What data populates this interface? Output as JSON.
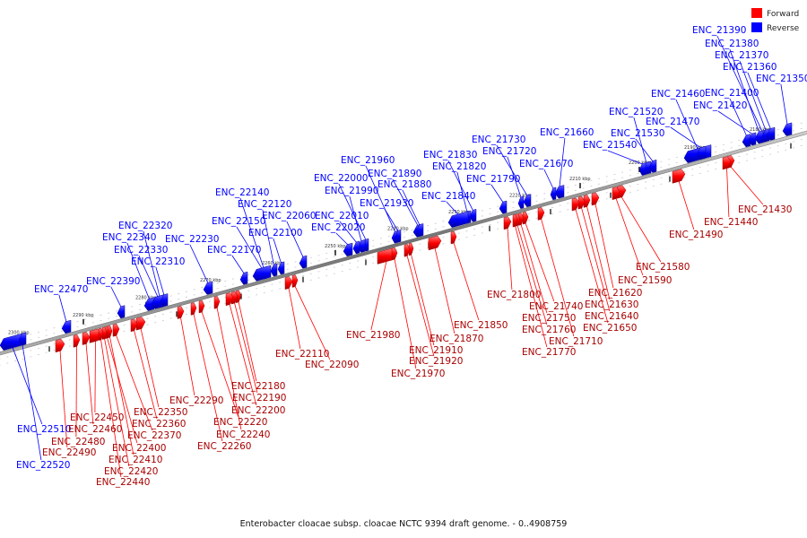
{
  "caption": "Enterobacter cloacae subsp. cloacae NCTC 9394 draft genome. - 0..4908759",
  "legend": {
    "forward_label": "Forward",
    "reverse_label": "Reverse",
    "forward_color": "#ff0000",
    "reverse_color": "#0000ff"
  },
  "colors": {
    "forward": "#ff0000",
    "forward_dark": "#a80000",
    "reverse": "#0000ff",
    "reverse_dark": "#0000a0",
    "backbone": "#808080"
  },
  "scale_ticks": [
    "2180 kbp",
    "2190 kbp",
    "2200 kbp",
    "2210 kbp",
    "2220 kbp",
    "2230 kbp",
    "2240 kbp",
    "2250 kbp",
    "2260 kbp",
    "2270 kbp",
    "2280 kbp",
    "2290 kbp",
    "2300 kbp"
  ],
  "reverse_genes": [
    "ENC_21390",
    "ENC_21380",
    "ENC_21370",
    "ENC_21360",
    "ENC_21350",
    "ENC_21460",
    "ENC_21400",
    "ENC_21520",
    "ENC_21420",
    "ENC_21470",
    "ENC_21530",
    "ENC_21660",
    "ENC_21540",
    "ENC_21730",
    "ENC_21720",
    "ENC_21830",
    "ENC_21670",
    "ENC_21820",
    "ENC_21790",
    "ENC_21840",
    "ENC_21960",
    "ENC_21890",
    "ENC_22000",
    "ENC_21880",
    "ENC_21990",
    "ENC_21930",
    "ENC_22140",
    "ENC_22120",
    "ENC_22010",
    "ENC_22150",
    "ENC_22060",
    "ENC_22020",
    "ENC_22100",
    "ENC_22320",
    "ENC_22340",
    "ENC_22230",
    "ENC_22330",
    "ENC_22170",
    "ENC_22310",
    "ENC_22390",
    "ENC_22470",
    "ENC_22510",
    "ENC_22520"
  ],
  "forward_genes": [
    "ENC_21430",
    "ENC_21440",
    "ENC_21490",
    "ENC_21580",
    "ENC_21590",
    "ENC_21620",
    "ENC_21630",
    "ENC_21640",
    "ENC_21650",
    "ENC_21800",
    "ENC_21740",
    "ENC_21750",
    "ENC_21760",
    "ENC_21710",
    "ENC_21770",
    "ENC_21850",
    "ENC_21870",
    "ENC_21980",
    "ENC_21910",
    "ENC_21920",
    "ENC_21970",
    "ENC_22110",
    "ENC_22090",
    "ENC_22180",
    "ENC_22190",
    "ENC_22200",
    "ENC_22290",
    "ENC_22220",
    "ENC_22240",
    "ENC_22260",
    "ENC_22350",
    "ENC_22360",
    "ENC_22450",
    "ENC_22460",
    "ENC_22370",
    "ENC_22480",
    "ENC_22490",
    "ENC_22400",
    "ENC_22410",
    "ENC_22420",
    "ENC_22440"
  ]
}
